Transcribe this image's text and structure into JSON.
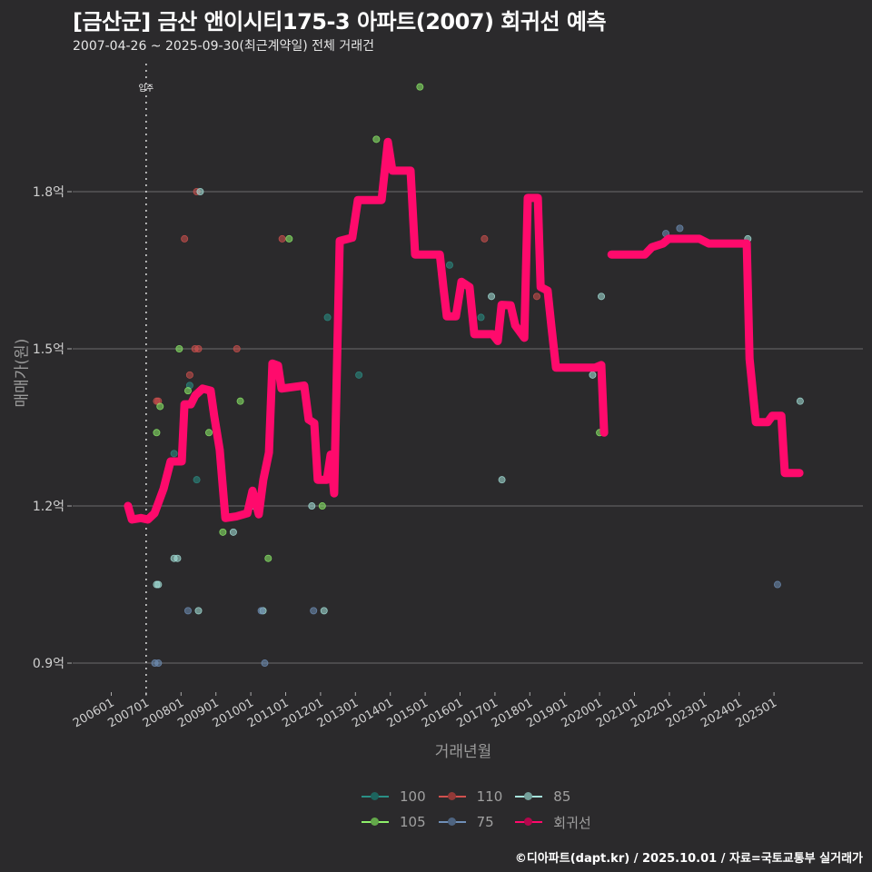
{
  "header": {
    "title": "[금산군] 금산 앤이시티175-3 아파트(2007) 회귀선 예측",
    "subtitle": "2007-04-26 ~ 2025-09-30(최근계약일) 전체 거래건"
  },
  "footer": {
    "credit": "©디아파트(dapt.kr) / 2025.10.01 / 자료=국토교통부 실거래가"
  },
  "colors": {
    "background": "#2b2a2c",
    "grid": "#6b6b6b",
    "regression": "#ff0a6c",
    "s100": "#2a8f86",
    "s110": "#d1514f",
    "s85": "#a6e3dc",
    "s105": "#8ef06a",
    "s75": "#6f8fb8"
  },
  "chart_data": {
    "type": "scatter",
    "title": "[금산군] 금산 앤이시티175-3 아파트(2007) 회귀선 예측",
    "subtitle": "2007-04-26 ~ 2025-09-30(최근계약일) 전체 거래건",
    "xlabel": "거래년월",
    "ylabel": "매매가(원)",
    "y_unit": "억",
    "ylim": [
      0.84,
      2.1
    ],
    "xlim": [
      2005.5,
      2026.3
    ],
    "yticks": [
      0.9,
      1.2,
      1.5,
      1.8
    ],
    "ytick_labels": [
      "0.9억",
      "1.2억",
      "1.5억",
      "1.8억"
    ],
    "xticks": [
      2006,
      2007,
      2008,
      2009,
      2010,
      2011,
      2012,
      2013,
      2014,
      2015,
      2016,
      2017,
      2018,
      2019,
      2020,
      2021,
      2022,
      2023,
      2024,
      2025
    ],
    "xtick_labels": [
      "200601",
      "200701",
      "200801",
      "200901",
      "201001",
      "201101",
      "201201",
      "201301",
      "201401",
      "201501",
      "201601",
      "201701",
      "201801",
      "201901",
      "202001",
      "202101",
      "202201",
      "202301",
      "202401",
      "202501"
    ],
    "grid": true,
    "legend_position": "bottom",
    "annotation": {
      "label": "입주",
      "x": 2007.0
    },
    "legend": [
      "100",
      "110",
      "85",
      "105",
      "75",
      "회귀선"
    ],
    "series": [
      {
        "name": "100",
        "color_key": "s100",
        "points": [
          [
            2007.8,
            1.3
          ],
          [
            2008.45,
            1.25
          ],
          [
            2008.25,
            1.43
          ],
          [
            2012.2,
            1.56
          ],
          [
            2013.1,
            1.45
          ],
          [
            2015.7,
            1.66
          ],
          [
            2016.6,
            1.56
          ],
          [
            2018.3,
            1.63
          ]
        ]
      },
      {
        "name": "110",
        "color_key": "s110",
        "points": [
          [
            2007.3,
            1.4
          ],
          [
            2007.35,
            1.4
          ],
          [
            2008.1,
            1.71
          ],
          [
            2008.25,
            1.45
          ],
          [
            2008.4,
            1.5
          ],
          [
            2008.45,
            1.8
          ],
          [
            2008.5,
            1.5
          ],
          [
            2009.6,
            1.5
          ],
          [
            2010.9,
            1.71
          ],
          [
            2016.7,
            1.71
          ],
          [
            2018.2,
            1.6
          ]
        ]
      },
      {
        "name": "85",
        "color_key": "s85",
        "points": [
          [
            2007.3,
            1.05
          ],
          [
            2007.35,
            1.05
          ],
          [
            2007.8,
            1.1
          ],
          [
            2007.9,
            1.1
          ],
          [
            2008.5,
            1.0
          ],
          [
            2008.55,
            1.8
          ],
          [
            2009.5,
            1.15
          ],
          [
            2010.05,
            1.2
          ],
          [
            2010.35,
            1.0
          ],
          [
            2011.75,
            1.2
          ],
          [
            2012.1,
            1.0
          ],
          [
            2016.9,
            1.6
          ],
          [
            2017.2,
            1.25
          ],
          [
            2019.8,
            1.45
          ],
          [
            2020.05,
            1.6
          ],
          [
            2024.25,
            1.71
          ],
          [
            2025.75,
            1.4
          ]
        ]
      },
      {
        "name": "105",
        "color_key": "s105",
        "points": [
          [
            2007.3,
            1.34
          ],
          [
            2007.4,
            1.39
          ],
          [
            2007.95,
            1.5
          ],
          [
            2008.2,
            1.42
          ],
          [
            2008.8,
            1.34
          ],
          [
            2009.2,
            1.15
          ],
          [
            2009.7,
            1.4
          ],
          [
            2010.5,
            1.1
          ],
          [
            2011.1,
            1.71
          ],
          [
            2012.05,
            1.2
          ],
          [
            2013.6,
            1.9
          ],
          [
            2014.85,
            2.0
          ],
          [
            2020.0,
            1.34
          ]
        ]
      },
      {
        "name": "75",
        "color_key": "s75",
        "points": [
          [
            2007.25,
            0.9
          ],
          [
            2007.35,
            0.9
          ],
          [
            2008.2,
            1.0
          ],
          [
            2010.3,
            1.0
          ],
          [
            2010.4,
            0.9
          ],
          [
            2011.8,
            1.0
          ],
          [
            2021.9,
            1.72
          ],
          [
            2022.3,
            1.73
          ],
          [
            2025.1,
            1.05
          ]
        ]
      },
      {
        "name": "회귀선",
        "color_key": "regression",
        "type": "line",
        "segments": [
          [
            [
              2006.48,
              1.2
            ],
            [
              2006.59,
              1.174
            ],
            [
              2006.85,
              1.177
            ],
            [
              2007.05,
              1.174
            ],
            [
              2007.24,
              1.186
            ],
            [
              2007.5,
              1.233
            ],
            [
              2007.7,
              1.285
            ],
            [
              2008.02,
              1.285
            ],
            [
              2008.1,
              1.394
            ],
            [
              2008.28,
              1.394
            ],
            [
              2008.41,
              1.411
            ],
            [
              2008.62,
              1.424
            ],
            [
              2008.85,
              1.42
            ],
            [
              2008.95,
              1.372
            ],
            [
              2009.11,
              1.307
            ],
            [
              2009.27,
              1.177
            ],
            [
              2009.58,
              1.18
            ],
            [
              2009.9,
              1.186
            ],
            [
              2010.05,
              1.229
            ],
            [
              2010.23,
              1.184
            ],
            [
              2010.36,
              1.25
            ],
            [
              2010.52,
              1.302
            ],
            [
              2010.62,
              1.472
            ],
            [
              2010.78,
              1.468
            ],
            [
              2010.88,
              1.424
            ],
            [
              2011.53,
              1.43
            ],
            [
              2011.66,
              1.365
            ],
            [
              2011.82,
              1.358
            ],
            [
              2011.92,
              1.25
            ],
            [
              2012.18,
              1.25
            ],
            [
              2012.29,
              1.298
            ],
            [
              2012.39,
              1.224
            ],
            [
              2012.55,
              1.706
            ],
            [
              2012.91,
              1.712
            ],
            [
              2013.07,
              1.784
            ],
            [
              2013.75,
              1.784
            ],
            [
              2013.93,
              1.895
            ],
            [
              2014.06,
              1.84
            ],
            [
              2014.58,
              1.84
            ],
            [
              2014.71,
              1.68
            ],
            [
              2015.42,
              1.68
            ],
            [
              2015.52,
              1.618
            ],
            [
              2015.62,
              1.562
            ],
            [
              2015.88,
              1.562
            ],
            [
              2016.04,
              1.628
            ],
            [
              2016.27,
              1.618
            ],
            [
              2016.41,
              1.528
            ],
            [
              2016.93,
              1.528
            ],
            [
              2017.08,
              1.515
            ],
            [
              2017.19,
              1.584
            ],
            [
              2017.45,
              1.583
            ],
            [
              2017.58,
              1.545
            ],
            [
              2017.84,
              1.521
            ],
            [
              2017.94,
              1.788
            ],
            [
              2018.23,
              1.788
            ],
            [
              2018.31,
              1.618
            ],
            [
              2018.51,
              1.611
            ],
            [
              2018.62,
              1.542
            ],
            [
              2018.75,
              1.464
            ],
            [
              2019.87,
              1.464
            ],
            [
              2020.05,
              1.469
            ],
            [
              2020.13,
              1.34
            ]
          ],
          [
            [
              2020.34,
              1.68
            ],
            [
              2021.3,
              1.68
            ],
            [
              2021.5,
              1.694
            ],
            [
              2021.82,
              1.701
            ],
            [
              2021.98,
              1.71
            ],
            [
              2022.86,
              1.71
            ],
            [
              2023.13,
              1.701
            ],
            [
              2024.22,
              1.701
            ],
            [
              2024.3,
              1.481
            ],
            [
              2024.48,
              1.36
            ],
            [
              2024.82,
              1.36
            ],
            [
              2024.95,
              1.372
            ],
            [
              2025.21,
              1.372
            ],
            [
              2025.31,
              1.263
            ],
            [
              2025.73,
              1.263
            ]
          ]
        ]
      }
    ]
  },
  "legend_items": [
    {
      "label": "100",
      "color_key": "s100"
    },
    {
      "label": "110",
      "color_key": "s110"
    },
    {
      "label": "85",
      "color_key": "s85"
    },
    {
      "label": "105",
      "color_key": "s105"
    },
    {
      "label": "75",
      "color_key": "s75"
    },
    {
      "label": "회귀선",
      "color_key": "regression"
    }
  ]
}
